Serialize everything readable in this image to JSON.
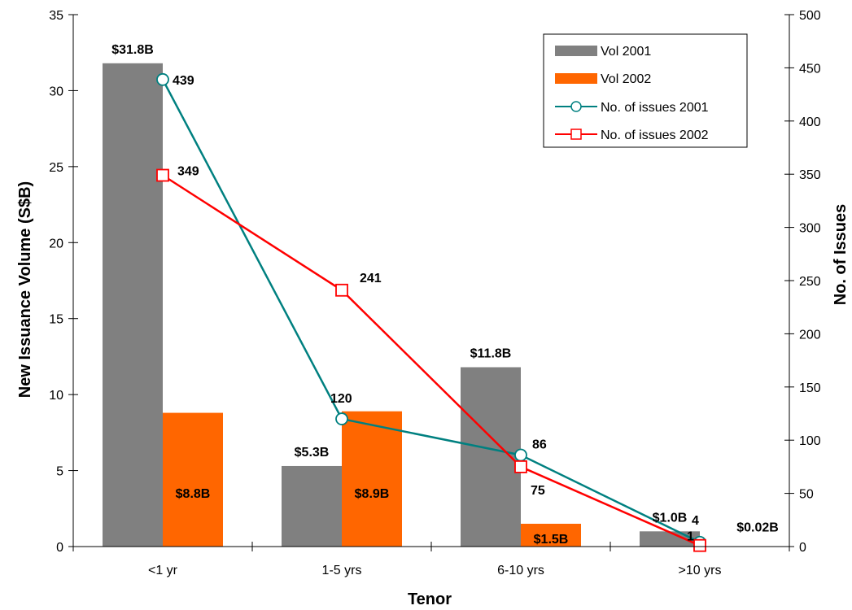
{
  "chart_data": {
    "type": "bar",
    "categories": [
      "<1 yr",
      "1-5 yrs",
      "6-10 yrs",
      ">10 yrs"
    ],
    "xlabel": "Tenor",
    "ylabel": "New Issuance Volume (S$B)",
    "y2label": "No. of Issues",
    "ylim": [
      0,
      35
    ],
    "y2lim": [
      0,
      500
    ],
    "yticks": [
      "0",
      "5",
      "10",
      "15",
      "20",
      "25",
      "30",
      "35"
    ],
    "y2ticks": [
      "0",
      "50",
      "100",
      "150",
      "200",
      "250",
      "300",
      "350",
      "400",
      "450",
      "500"
    ],
    "legend_position": "top-right",
    "grid": false,
    "bar_series": [
      {
        "name": "Vol 2001",
        "color": "#808080",
        "values": [
          31.8,
          5.3,
          11.8,
          1.0
        ],
        "labels": [
          "$31.8B",
          "$5.3B",
          "$11.8B",
          "$1.0B"
        ]
      },
      {
        "name": "Vol 2002",
        "color": "#ff6600",
        "values": [
          8.8,
          8.9,
          1.5,
          0.02
        ],
        "labels": [
          "$8.8B",
          "$8.9B",
          "$1.5B",
          "$0.02B"
        ]
      }
    ],
    "line_series": [
      {
        "name": "No. of issues 2001",
        "color": "#008080",
        "marker": "circle",
        "axis": "right",
        "values": [
          439,
          120,
          86,
          4
        ],
        "labels": [
          "439",
          "120",
          "86",
          "4"
        ]
      },
      {
        "name": "No. of issues 2002",
        "color": "#ff0000",
        "marker": "square",
        "axis": "right",
        "values": [
          349,
          241,
          75,
          1
        ],
        "labels": [
          "349",
          "241",
          "75",
          "1"
        ]
      }
    ]
  }
}
